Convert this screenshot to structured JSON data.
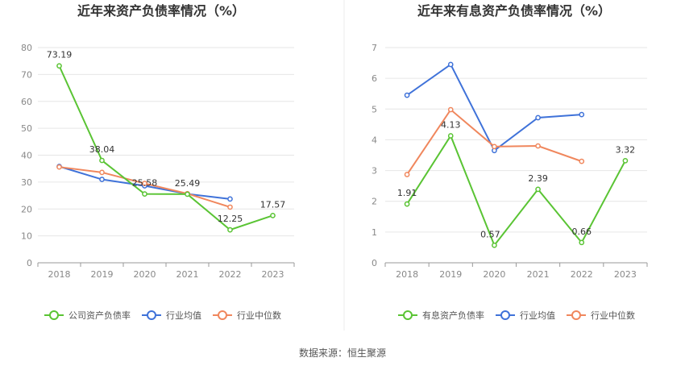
{
  "source_text": "数据来源：恒生聚源",
  "chart_data": [
    {
      "type": "line",
      "title": "近年来资产负债率情况（%）",
      "categories": [
        "2018",
        "2019",
        "2020",
        "2021",
        "2022",
        "2023"
      ],
      "ylim": [
        0,
        80
      ],
      "yticks": [
        0,
        10,
        20,
        30,
        40,
        50,
        60,
        70,
        80
      ],
      "grid": true,
      "legend_position": "bottom",
      "series": [
        {
          "name": "公司资产负债率",
          "color": "#5ac434",
          "labeled": true,
          "values": [
            73.19,
            38.04,
            25.58,
            25.49,
            12.25,
            17.57
          ],
          "labels": [
            "73.19",
            "38.04",
            "25.58",
            "25.49",
            "12.25",
            "17.57"
          ]
        },
        {
          "name": "行业均值",
          "color": "#3f72d9",
          "labeled": false,
          "values": [
            35.8,
            31.0,
            28.6,
            25.6,
            23.7,
            null
          ]
        },
        {
          "name": "行业中位数",
          "color": "#f0875d",
          "labeled": false,
          "values": [
            35.6,
            33.6,
            29.5,
            25.7,
            20.7,
            null
          ]
        }
      ]
    },
    {
      "type": "line",
      "title": "近年来有息资产负债率情况（%）",
      "categories": [
        "2018",
        "2019",
        "2020",
        "2021",
        "2022",
        "2023"
      ],
      "ylim": [
        0,
        7
      ],
      "yticks": [
        0,
        1,
        2,
        3,
        4,
        5,
        6,
        7
      ],
      "grid": true,
      "legend_position": "bottom",
      "series": [
        {
          "name": "有息资产负债率",
          "color": "#5ac434",
          "labeled": true,
          "values": [
            1.91,
            4.13,
            0.57,
            2.39,
            0.66,
            3.32
          ],
          "labels": [
            "1.91",
            "4.13",
            "0.57",
            "2.39",
            "0.66",
            "3.32"
          ]
        },
        {
          "name": "行业均值",
          "color": "#3f72d9",
          "labeled": false,
          "values": [
            5.45,
            6.45,
            3.65,
            4.72,
            4.82,
            null
          ]
        },
        {
          "name": "行业中位数",
          "color": "#f0875d",
          "labeled": false,
          "values": [
            2.87,
            4.98,
            3.78,
            3.8,
            3.3,
            null
          ]
        }
      ]
    }
  ]
}
